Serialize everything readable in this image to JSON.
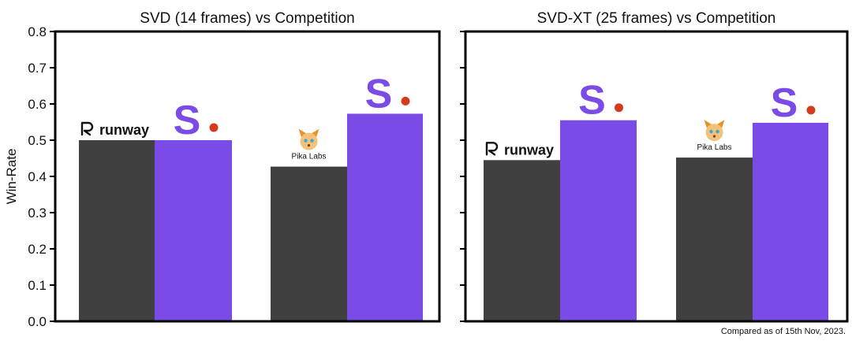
{
  "chart_data": [
    {
      "type": "bar",
      "title": "SVD (14 frames) vs Competition",
      "ylabel": "Win-Rate",
      "ylim": [
        0,
        0.8
      ],
      "yticks": [
        "0.0",
        "0.1",
        "0.2",
        "0.3",
        "0.4",
        "0.5",
        "0.6",
        "0.7",
        "0.8"
      ],
      "groups": [
        {
          "competitor": "runway",
          "values": [
            0.5,
            0.5
          ]
        },
        {
          "competitor": "Pika Labs",
          "values": [
            0.427,
            0.573
          ]
        }
      ]
    },
    {
      "type": "bar",
      "title": "SVD-XT (25 frames) vs Competition",
      "ylabel": "",
      "ylim": [
        0,
        0.8
      ],
      "yticks": [],
      "groups": [
        {
          "competitor": "runway",
          "values": [
            0.445,
            0.555
          ]
        },
        {
          "competitor": "Pika Labs",
          "values": [
            0.452,
            0.548
          ]
        }
      ]
    }
  ],
  "logos": {
    "stability": "S",
    "runway_icon": "runway-icon",
    "pika_icon": "pika-fox-icon"
  },
  "colors": {
    "competitor": "#404040",
    "stability": "#7a4be6",
    "stability_dot": "#d63a1c",
    "axis": "#000000"
  },
  "footnote": "Compared as of 15th Nov, 2023."
}
